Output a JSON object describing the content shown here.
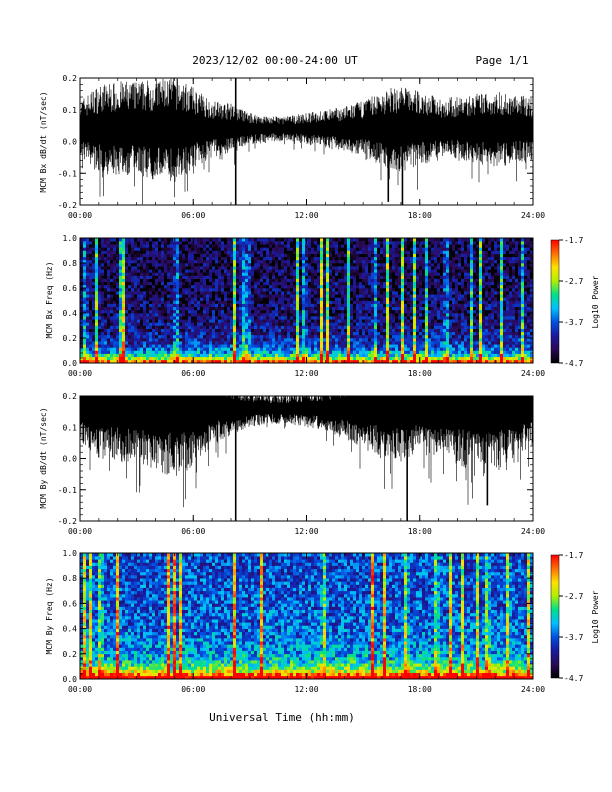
{
  "header": {
    "title": "2023/12/02  00:00-24:00 UT",
    "page_label": "Page 1/1"
  },
  "xlabel": "Universal Time (hh:mm)",
  "colors": {
    "trace": "#000000",
    "colormap": [
      "#000000",
      "#2a0a55",
      "#1a1aa0",
      "#0050e0",
      "#00c0ff",
      "#00e08a",
      "#b0f000",
      "#ffe000",
      "#ff7000",
      "#ff0000"
    ]
  },
  "chart_data": [
    {
      "type": "line",
      "ylabel": "MCM Bx dB/dt (nT/sec)",
      "xlim": [
        "00:00",
        "24:00"
      ],
      "ylim": [
        -0.2,
        0.2
      ],
      "x_ticks": [
        "00:00",
        "06:00",
        "12:00",
        "18:00",
        "24:00"
      ],
      "y_ticks": [
        "-0.2",
        "-0.1",
        "0.0",
        "0.1",
        "0.2"
      ],
      "series_center": 0.04,
      "envelope_hours": [
        0,
        1,
        2,
        3,
        4,
        5,
        6,
        7,
        8,
        9,
        10,
        11,
        12,
        13,
        14,
        15,
        16,
        17,
        18,
        19,
        20,
        21,
        22,
        23,
        24
      ],
      "envelope_amplitude": [
        0.09,
        0.14,
        0.15,
        0.15,
        0.16,
        0.17,
        0.13,
        0.09,
        0.08,
        0.05,
        0.04,
        0.04,
        0.05,
        0.06,
        0.07,
        0.09,
        0.12,
        0.14,
        0.12,
        0.1,
        0.1,
        0.11,
        0.12,
        0.11,
        0.1
      ],
      "spikes": [
        {
          "time": "08:15",
          "min": -0.2,
          "max": 0.2
        },
        {
          "time": "16:20",
          "min": -0.19,
          "max": 0.12
        },
        {
          "time": "17:05",
          "min": -0.2,
          "max": 0.13
        }
      ]
    },
    {
      "type": "heatmap",
      "ylabel": "MCM Bx Freq (Hz)",
      "colorbar_label": "Log10 Power",
      "colorbar_ticks": [
        "-1.7",
        "-2.7",
        "-3.7",
        "-4.7"
      ],
      "power_range": [
        -4.7,
        -1.7
      ],
      "xlim": [
        "00:00",
        "24:00"
      ],
      "ylim": [
        0.0,
        1.0
      ],
      "x_ticks": [
        "00:00",
        "06:00",
        "12:00",
        "18:00",
        "24:00"
      ],
      "y_ticks": [
        "0.0",
        "0.2",
        "0.4",
        "0.6",
        "0.8",
        "1.0"
      ],
      "base_level": 0.1,
      "bright_bands_hours": [
        0.3,
        0.9,
        2.1,
        2.3,
        5.1,
        8.2,
        8.6,
        8.9,
        11.5,
        11.9,
        12.8,
        13.1,
        14.2,
        15.6,
        16.3,
        17.1,
        17.7,
        18.4,
        19.4,
        20.7,
        21.2,
        22.3,
        23.4
      ]
    },
    {
      "type": "line",
      "ylabel": "MCM By dB/dt (nT/sec)",
      "xlim": [
        "00:00",
        "24:00"
      ],
      "ylim": [
        -0.2,
        0.2
      ],
      "x_ticks": [
        "00:00",
        "06:00",
        "12:00",
        "18:00",
        "24:00"
      ],
      "y_ticks": [
        "-0.2",
        "-0.1",
        "0.0",
        "0.1",
        "0.2"
      ],
      "series_center": 0.16,
      "envelope_hours": [
        0,
        1,
        2,
        3,
        4,
        5,
        6,
        7,
        8,
        9,
        10,
        11,
        12,
        13,
        14,
        15,
        16,
        17,
        18,
        19,
        20,
        21,
        22,
        23,
        24
      ],
      "envelope_amplitude": [
        0.1,
        0.16,
        0.17,
        0.18,
        0.2,
        0.22,
        0.19,
        0.12,
        0.09,
        0.06,
        0.05,
        0.05,
        0.06,
        0.07,
        0.1,
        0.13,
        0.16,
        0.17,
        0.15,
        0.15,
        0.18,
        0.22,
        0.21,
        0.16,
        0.12
      ],
      "spikes": [
        {
          "time": "08:15",
          "min": -0.2,
          "max": 0.2
        },
        {
          "time": "17:20",
          "min": -0.2,
          "max": 0.2
        },
        {
          "time": "21:35",
          "min": -0.15,
          "max": 0.2
        }
      ]
    },
    {
      "type": "heatmap",
      "ylabel": "MCM By Freq (Hz)",
      "colorbar_label": "Log10 Power",
      "colorbar_ticks": [
        "-1.7",
        "-2.7",
        "-3.7",
        "-4.7"
      ],
      "power_range": [
        -4.7,
        -1.7
      ],
      "xlim": [
        "00:00",
        "24:00"
      ],
      "ylim": [
        0.0,
        1.0
      ],
      "x_ticks": [
        "00:00",
        "06:00",
        "12:00",
        "18:00",
        "24:00"
      ],
      "y_ticks": [
        "0.0",
        "0.2",
        "0.4",
        "0.6",
        "0.8",
        "1.0"
      ],
      "base_level": 0.3,
      "bright_bands_hours": [
        0.2,
        0.6,
        1.1,
        2.0,
        4.7,
        5.0,
        5.3,
        8.2,
        9.6,
        12.9,
        15.5,
        16.1,
        17.3,
        18.9,
        19.6,
        20.3,
        21.1,
        21.6,
        22.7,
        23.8
      ]
    }
  ]
}
